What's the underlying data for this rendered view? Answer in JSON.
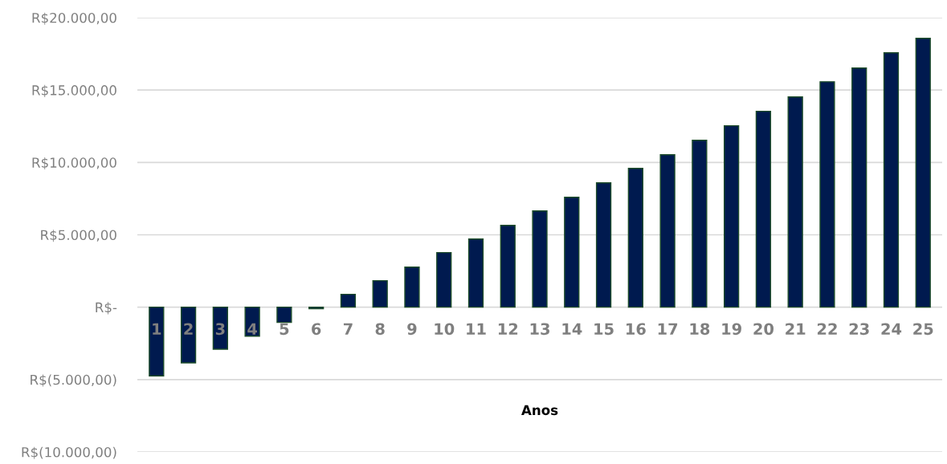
{
  "chart_data": {
    "type": "bar",
    "xlabel": "Anos",
    "categories": [
      "1",
      "2",
      "3",
      "4",
      "5",
      "6",
      "7",
      "8",
      "9",
      "10",
      "11",
      "12",
      "13",
      "14",
      "15",
      "16",
      "17",
      "18",
      "19",
      "20",
      "21",
      "22",
      "23",
      "24",
      "25"
    ],
    "series": [
      {
        "color": "#001a4f",
        "values": [
          -4750,
          -3850,
          -2900,
          -2000,
          -1050,
          -100,
          890,
          1830,
          2770,
          3770,
          4710,
          5650,
          6650,
          7590,
          8590,
          9590,
          10530,
          11530,
          12530,
          13530,
          14520,
          15570,
          16520,
          17570,
          18570
        ]
      }
    ],
    "ylim": [
      -10000,
      20000
    ],
    "yticks": [
      {
        "value": -10000,
        "label": "R$(10.000,00)"
      },
      {
        "value": -5000,
        "label": "R$(5.000,00)"
      },
      {
        "value": 0,
        "label": "R$-"
      },
      {
        "value": 5000,
        "label": "R$5.000,00"
      },
      {
        "value": 10000,
        "label": "R$10.000,00"
      },
      {
        "value": 15000,
        "label": "R$15.000,00"
      },
      {
        "value": 20000,
        "label": "R$20.000,00"
      }
    ],
    "grid": "y",
    "legend": false
  }
}
